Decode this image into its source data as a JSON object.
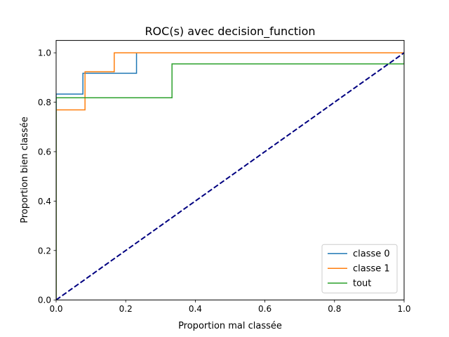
{
  "chart_data": {
    "type": "line",
    "title": "ROC(s) avec decision_function",
    "xlabel": "Proportion mal classée",
    "ylabel": "Proportion bien classée",
    "xlim": [
      0,
      1
    ],
    "ylim": [
      0,
      1.05
    ],
    "xticks": [
      0.0,
      0.2,
      0.4,
      0.6,
      0.8,
      1.0
    ],
    "xtick_labels": [
      "0.0",
      "0.2",
      "0.4",
      "0.6",
      "0.8",
      "1.0"
    ],
    "yticks": [
      0.0,
      0.2,
      0.4,
      0.6,
      0.8,
      1.0
    ],
    "ytick_labels": [
      "0.0",
      "0.2",
      "0.4",
      "0.6",
      "0.8",
      "1.0"
    ],
    "grid": false,
    "legend_position": "lower-right",
    "series": [
      {
        "name": "classe 0",
        "color": "#1f77b4",
        "style": "solid",
        "x": [
          0.0,
          0.0,
          0.077,
          0.077,
          0.231,
          0.231,
          1.0
        ],
        "y": [
          0.0,
          0.833,
          0.833,
          0.917,
          0.917,
          1.0,
          1.0
        ]
      },
      {
        "name": "classe 1",
        "color": "#ff7f0e",
        "style": "solid",
        "x": [
          0.0,
          0.0,
          0.083,
          0.083,
          0.167,
          0.167,
          1.0
        ],
        "y": [
          0.0,
          0.769,
          0.769,
          0.923,
          0.923,
          1.0,
          1.0
        ]
      },
      {
        "name": "tout",
        "color": "#2ca02c",
        "style": "solid",
        "x": [
          0.0,
          0.0,
          0.333,
          0.333,
          1.0,
          1.0
        ],
        "y": [
          0.0,
          0.818,
          0.818,
          0.955,
          0.955,
          1.0
        ]
      },
      {
        "color": "#000080",
        "style": "dashed",
        "x": [
          0.0,
          1.0
        ],
        "y": [
          0.0,
          1.0
        ]
      }
    ]
  }
}
